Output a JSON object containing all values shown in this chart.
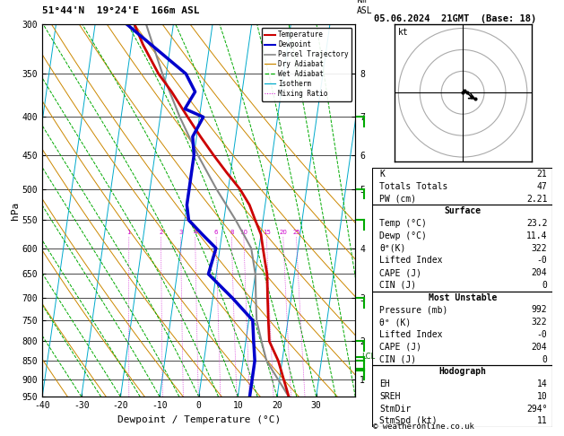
{
  "title_left": "51°44'N  19°24'E  166m ASL",
  "title_right": "05.06.2024  21GMT  (Base: 18)",
  "xlabel": "Dewpoint / Temperature (°C)",
  "ylabel_left": "hPa",
  "pressure_levels": [
    300,
    350,
    400,
    450,
    500,
    550,
    600,
    650,
    700,
    750,
    800,
    850,
    900,
    950
  ],
  "km_ticks": {
    "8": 350,
    "7": 400,
    "6": 450,
    "5": 500,
    "4": 600,
    "3": 700,
    "2": 800,
    "1": 900
  },
  "xlim": [
    -40,
    40
  ],
  "temp_profile_p": [
    300,
    320,
    350,
    370,
    400,
    425,
    450,
    475,
    500,
    525,
    550,
    575,
    600,
    625,
    650,
    700,
    750,
    800,
    850,
    950
  ],
  "temp_profile_t": [
    -30,
    -27,
    -22,
    -18,
    -13,
    -9,
    -5,
    -1,
    3,
    6,
    8,
    10,
    11,
    12,
    13,
    14,
    15,
    16,
    19,
    23
  ],
  "dewp_profile_p": [
    300,
    350,
    370,
    390,
    400,
    425,
    450,
    475,
    500,
    525,
    550,
    575,
    600,
    650,
    700,
    750,
    800,
    850,
    950
  ],
  "dewp_profile_t": [
    -32,
    -15,
    -12,
    -14,
    -9,
    -11,
    -10,
    -10,
    -10,
    -10,
    -9,
    -5,
    -1,
    -2,
    5,
    11,
    12,
    13,
    13
  ],
  "parcel_p": [
    300,
    350,
    400,
    450,
    500,
    550,
    600,
    650,
    700,
    750,
    800,
    850,
    950
  ],
  "parcel_t": [
    -27,
    -21,
    -15,
    -9,
    -3,
    3,
    8,
    10,
    11,
    12,
    14,
    16,
    23
  ],
  "lcl_pressure": 840,
  "background_color": "#ffffff",
  "temp_color": "#cc0000",
  "dewp_color": "#0000cc",
  "parcel_color": "#888888",
  "dry_adiabat_color": "#cc8800",
  "wet_adiabat_color": "#00aa00",
  "isotherm_color": "#00aacc",
  "mixing_ratio_color": "#cc00cc",
  "grid_color": "#000000",
  "stats": {
    "K": "21",
    "Totals Totals": "47",
    "PW (cm)": "2.21",
    "Surface_Temp": "23.2",
    "Surface_Dewp": "11.4",
    "Surface_theta_e": "322",
    "Surface_LI": "-0",
    "Surface_CAPE": "204",
    "Surface_CIN": "0",
    "MU_Pressure": "992",
    "MU_theta_e": "322",
    "MU_LI": "-0",
    "MU_CAPE": "204",
    "MU_CIN": "0",
    "EH": "14",
    "SREH": "10",
    "StmDir": "294°",
    "StmSpd": "11"
  },
  "copyright": "© weatheronline.co.uk"
}
